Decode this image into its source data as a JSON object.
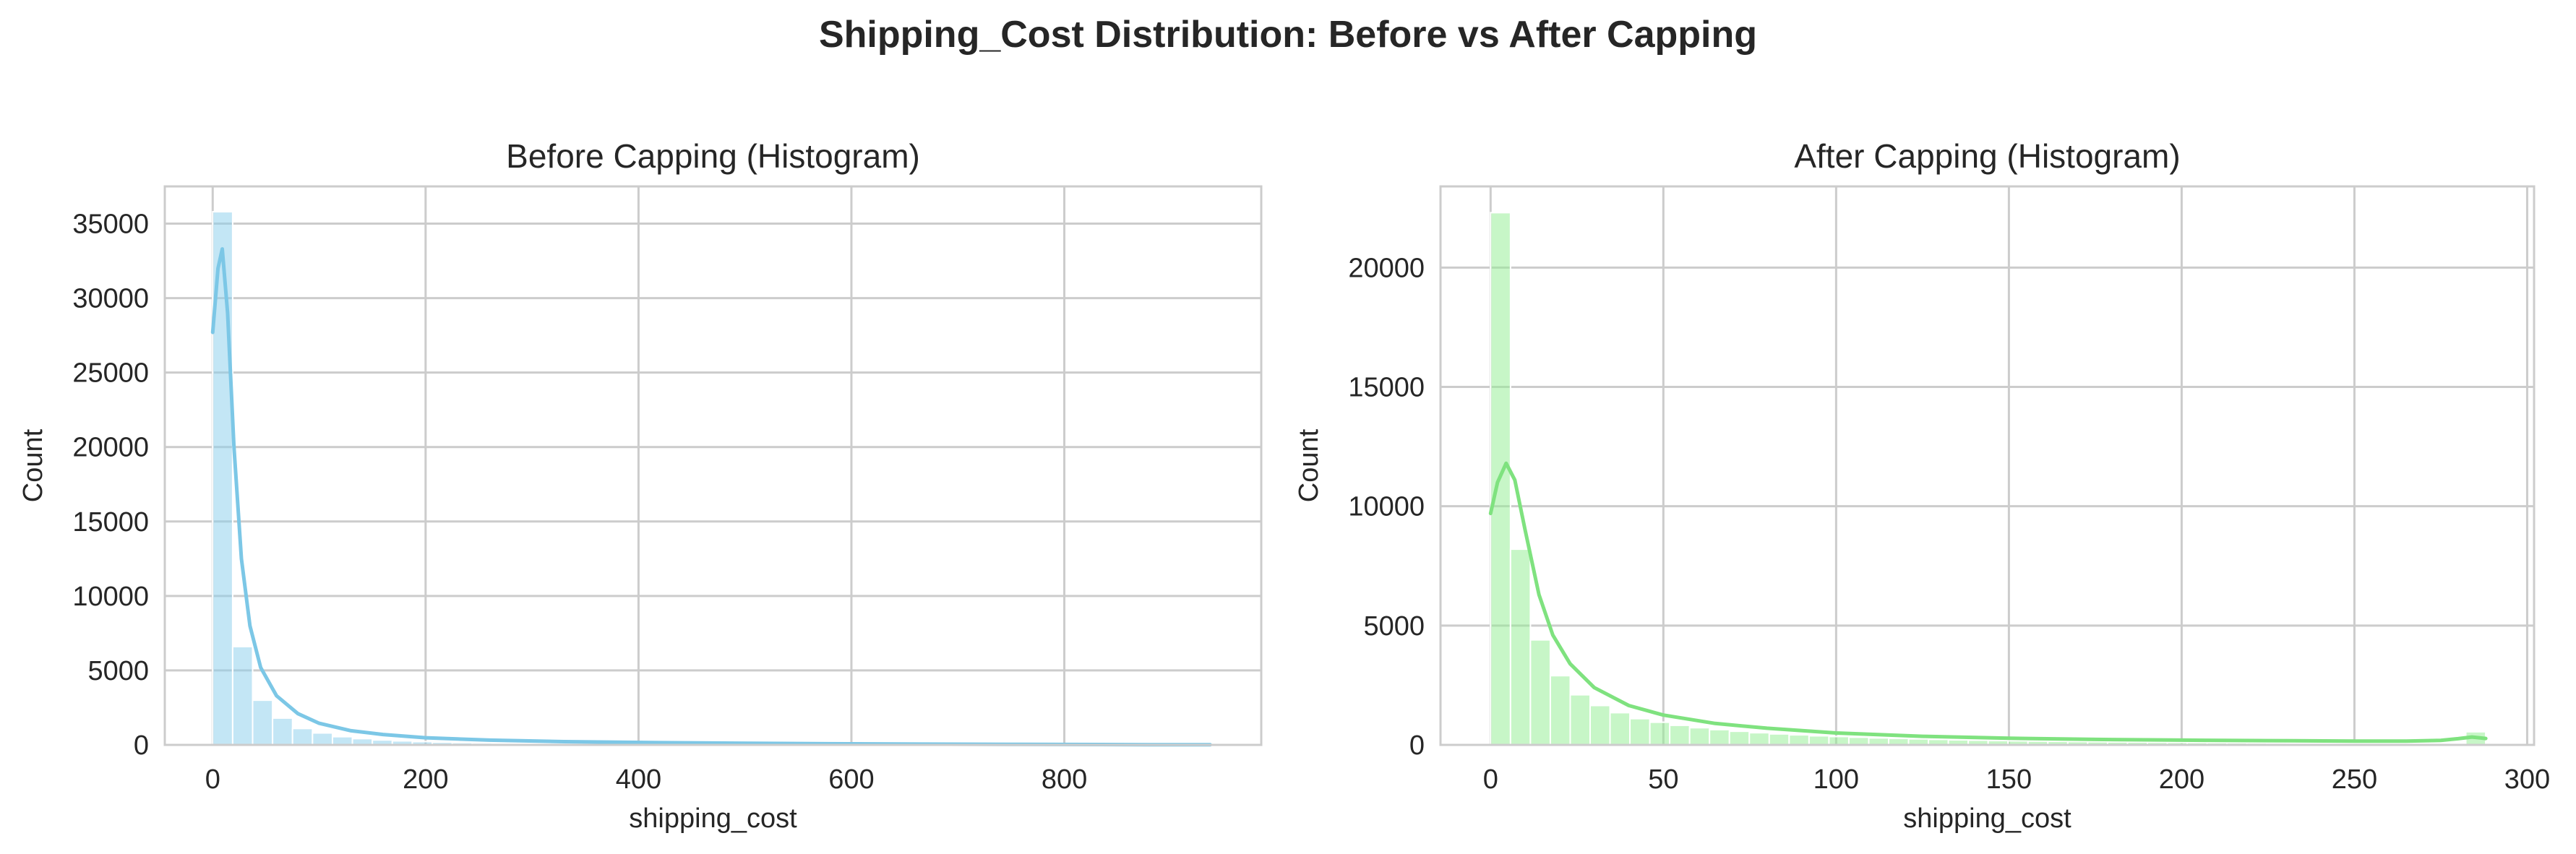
{
  "figure_title": "Shipping_Cost Distribution: Before vs After Capping",
  "chart_data": [
    {
      "type": "bar",
      "subtype": "histogram",
      "title": "Before Capping (Histogram)",
      "xlabel": "shipping_cost",
      "ylabel": "Count",
      "xlim": [
        -45,
        985
      ],
      "ylim": [
        0,
        37500
      ],
      "xticks": [
        0,
        200,
        400,
        600,
        800
      ],
      "yticks": [
        0,
        5000,
        10000,
        15000,
        20000,
        25000,
        30000,
        35000
      ],
      "grid": true,
      "legend": "none",
      "color": "#87ceeb",
      "bin_start": 0,
      "bin_width": 18.75,
      "values": [
        35800,
        6600,
        3000,
        1800,
        1100,
        800,
        550,
        420,
        330,
        270,
        220,
        180,
        150,
        130,
        110,
        95,
        85,
        75,
        65,
        58,
        52,
        47,
        42,
        38,
        34,
        31,
        28,
        26,
        24,
        22,
        20,
        18,
        16,
        15,
        14,
        13,
        12,
        11,
        10,
        9,
        8,
        8,
        7,
        7,
        6,
        6,
        5,
        5,
        4,
        4
      ],
      "kde": {
        "x": [
          0,
          5,
          9,
          14,
          20,
          27,
          35,
          45,
          60,
          80,
          100,
          130,
          160,
          200,
          260,
          330,
          420,
          520,
          640,
          760,
          880,
          937
        ],
        "y": [
          27700,
          32000,
          33300,
          29000,
          20000,
          12500,
          8000,
          5200,
          3300,
          2100,
          1450,
          950,
          700,
          480,
          320,
          220,
          150,
          100,
          60,
          35,
          15,
          8
        ]
      }
    },
    {
      "type": "bar",
      "subtype": "histogram",
      "title": "After Capping (Histogram)",
      "xlabel": "shipping_cost",
      "ylabel": "Count",
      "xlim": [
        -14.5,
        302
      ],
      "ylim": [
        0,
        23400
      ],
      "xticks": [
        0,
        50,
        100,
        150,
        200,
        250,
        300
      ],
      "yticks": [
        0,
        5000,
        10000,
        15000,
        20000
      ],
      "grid": true,
      "legend": "none",
      "color": "#90ee90",
      "bin_start": 0,
      "bin_width": 5.76,
      "values": [
        22300,
        8200,
        4400,
        2900,
        2100,
        1650,
        1350,
        1100,
        950,
        820,
        720,
        640,
        570,
        510,
        460,
        420,
        380,
        350,
        320,
        290,
        270,
        250,
        230,
        210,
        195,
        180,
        170,
        160,
        150,
        140,
        132,
        124,
        117,
        110,
        104,
        98,
        92,
        87,
        82,
        78,
        74,
        70,
        66,
        62,
        59,
        56,
        53,
        50,
        47,
        550
      ],
      "kde": {
        "x": [
          0,
          2,
          4.5,
          7,
          10,
          14,
          18,
          23,
          30,
          40,
          50,
          65,
          80,
          100,
          125,
          150,
          175,
          200,
          225,
          250,
          265,
          275,
          280,
          284,
          288
        ],
        "y": [
          9700,
          11000,
          11800,
          11100,
          9000,
          6300,
          4600,
          3400,
          2400,
          1650,
          1250,
          900,
          700,
          500,
          360,
          280,
          230,
          200,
          180,
          160,
          160,
          190,
          260,
          330,
          270
        ]
      }
    }
  ]
}
